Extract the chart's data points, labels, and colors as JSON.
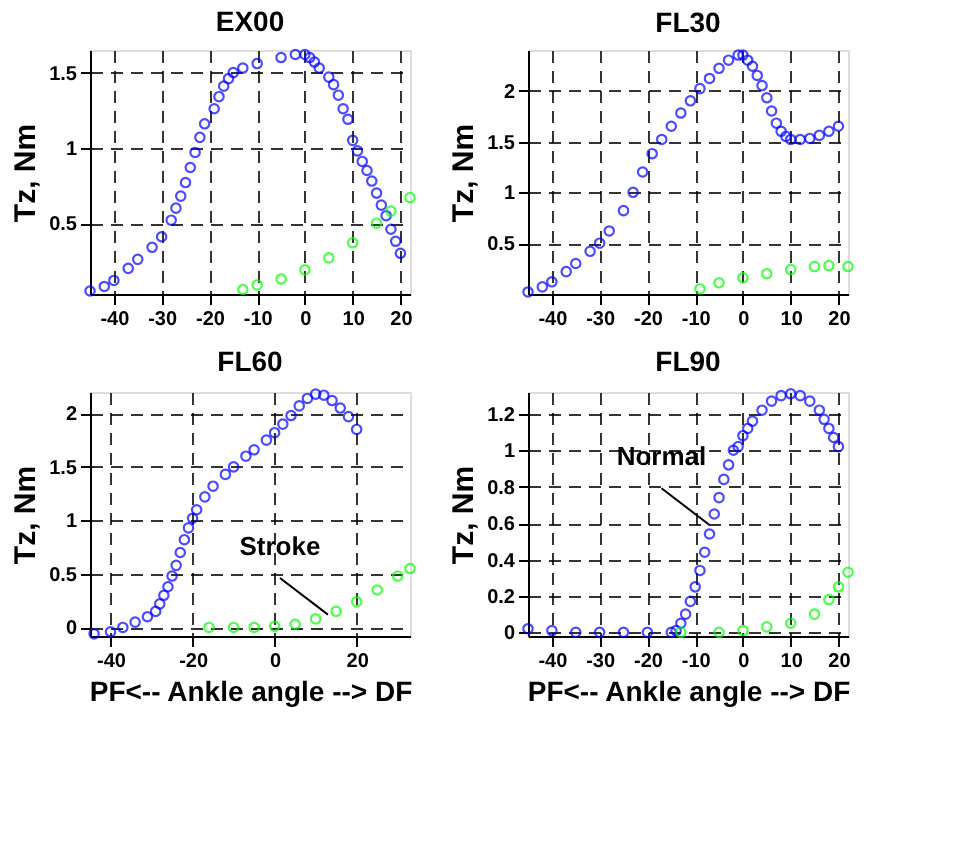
{
  "chart_data": [
    {
      "type": "scatter",
      "title": "EX00",
      "ylabel": "Tz, Nm",
      "xlim": [
        -45,
        22
      ],
      "ylim": [
        0.03,
        1.65
      ],
      "xticks": [
        -40,
        -30,
        -20,
        -10,
        0,
        10,
        20
      ],
      "yticks": [
        0.5,
        1,
        1.5
      ],
      "grid": true,
      "marker": "circle",
      "series": [
        {
          "color": "#0000ff",
          "x": [
            -45,
            -42,
            -40,
            -37,
            -35,
            -32,
            -30,
            -28,
            -27,
            -26,
            -25,
            -24,
            -23,
            -22,
            -21,
            -19,
            -18,
            -17,
            -16,
            -15,
            -13,
            -10,
            -5,
            -2,
            0,
            1,
            2,
            3,
            5,
            6,
            7,
            8,
            9,
            10,
            11,
            12,
            13,
            14,
            15,
            16,
            17,
            18,
            19,
            20
          ],
          "values": [
            0.05,
            0.08,
            0.12,
            0.2,
            0.26,
            0.34,
            0.41,
            0.52,
            0.6,
            0.68,
            0.77,
            0.87,
            0.97,
            1.07,
            1.16,
            1.26,
            1.34,
            1.41,
            1.46,
            1.5,
            1.53,
            1.56,
            1.6,
            1.62,
            1.62,
            1.6,
            1.57,
            1.53,
            1.47,
            1.42,
            1.35,
            1.26,
            1.19,
            1.05,
            0.98,
            0.91,
            0.85,
            0.78,
            0.7,
            0.62,
            0.55,
            0.46,
            0.38,
            0.3
          ]
        },
        {
          "color": "#00ff00",
          "x": [
            -13,
            -10,
            -5,
            0,
            5,
            10,
            15,
            18,
            22
          ],
          "values": [
            0.06,
            0.09,
            0.13,
            0.19,
            0.27,
            0.37,
            0.5,
            0.58,
            0.67
          ]
        }
      ]
    },
    {
      "type": "scatter",
      "title": "FL30",
      "ylabel": "Tz, Nm",
      "xlim": [
        -45,
        22
      ],
      "ylim": [
        0,
        2.4
      ],
      "xticks": [
        -40,
        -30,
        -20,
        -10,
        0,
        10,
        20
      ],
      "yticks": [
        0.5,
        1,
        1.5,
        2
      ],
      "grid": true,
      "marker": "circle",
      "series": [
        {
          "color": "#0000ff",
          "x": [
            -45,
            -42,
            -40,
            -37,
            -35,
            -32,
            -30,
            -28,
            -25,
            -23,
            -21,
            -19,
            -17,
            -15,
            -13,
            -11,
            -9,
            -7,
            -5,
            -3,
            -1,
            0,
            1,
            2,
            3,
            4,
            5,
            6,
            7,
            8,
            9,
            10,
            12,
            14,
            16,
            18,
            20
          ],
          "values": [
            0.02,
            0.07,
            0.12,
            0.22,
            0.3,
            0.42,
            0.5,
            0.62,
            0.82,
            1.0,
            1.2,
            1.38,
            1.52,
            1.65,
            1.78,
            1.9,
            2.02,
            2.12,
            2.22,
            2.3,
            2.35,
            2.35,
            2.3,
            2.24,
            2.15,
            2.05,
            1.93,
            1.8,
            1.68,
            1.6,
            1.55,
            1.52,
            1.52,
            1.53,
            1.56,
            1.6,
            1.65
          ]
        },
        {
          "color": "#00ff00",
          "x": [
            -9,
            -5,
            0,
            5,
            10,
            15,
            18,
            22
          ],
          "values": [
            0.05,
            0.11,
            0.16,
            0.2,
            0.24,
            0.27,
            0.28,
            0.27
          ]
        }
      ]
    },
    {
      "type": "scatter",
      "title": "FL60",
      "xlabel": "PF<-- Ankle angle --> DF",
      "ylabel": "Tz, Nm",
      "xlim": [
        -45,
        33
      ],
      "ylim": [
        -0.08,
        2.2
      ],
      "xticks": [
        -40,
        -20,
        0,
        20
      ],
      "yticks": [
        0,
        0.5,
        1,
        1.5,
        2
      ],
      "grid": true,
      "marker": "circle",
      "annotations": [
        {
          "text": "Stroke",
          "x": 13,
          "y": 0.12
        }
      ],
      "series": [
        {
          "color": "#0000ff",
          "x": [
            -44,
            -40,
            -37,
            -34,
            -31,
            -29,
            -28,
            -27,
            -26,
            -25,
            -24,
            -23,
            -22,
            -21,
            -20,
            -19,
            -17,
            -15,
            -12,
            -10,
            -7,
            -5,
            -2,
            0,
            2,
            4,
            6,
            8,
            10,
            12,
            14,
            16,
            18,
            20
          ],
          "values": [
            -0.06,
            -0.04,
            0.0,
            0.05,
            0.1,
            0.15,
            0.22,
            0.3,
            0.38,
            0.48,
            0.58,
            0.7,
            0.82,
            0.93,
            1.02,
            1.1,
            1.22,
            1.32,
            1.43,
            1.5,
            1.6,
            1.66,
            1.75,
            1.82,
            1.9,
            1.98,
            2.07,
            2.14,
            2.18,
            2.17,
            2.12,
            2.05,
            1.97,
            1.85
          ]
        },
        {
          "color": "#00ff00",
          "x": [
            -16,
            -10,
            -5,
            0,
            5,
            10,
            15,
            20,
            25,
            30,
            33
          ],
          "values": [
            0.0,
            0.0,
            0.0,
            0.01,
            0.03,
            0.08,
            0.15,
            0.24,
            0.35,
            0.48,
            0.55
          ]
        }
      ]
    },
    {
      "type": "scatter",
      "title": "FL90",
      "xlabel": "PF<-- Ankle angle --> DF",
      "ylabel": "Tz, Nm",
      "xlim": [
        -45,
        22
      ],
      "ylim": [
        -0.02,
        1.32
      ],
      "xticks": [
        -40,
        -30,
        -20,
        -10,
        0,
        10,
        20
      ],
      "yticks": [
        0,
        0.2,
        0.4,
        0.6,
        0.8,
        1,
        1.2
      ],
      "grid": true,
      "marker": "circle",
      "annotations": [
        {
          "text": "Normal",
          "x": -7,
          "y": 0.59
        }
      ],
      "series": [
        {
          "color": "#0000ff",
          "x": [
            -45,
            -40,
            -35,
            -30,
            -25,
            -20,
            -15,
            -14,
            -13,
            -12,
            -11,
            -10,
            -9,
            -8,
            -7,
            -6,
            -5,
            -4,
            -3,
            -2,
            -1,
            0,
            1,
            2,
            4,
            6,
            8,
            10,
            12,
            14,
            16,
            17,
            18,
            19,
            20
          ],
          "values": [
            0.02,
            0.01,
            0.0,
            0.0,
            0.0,
            0.0,
            0.0,
            0.01,
            0.05,
            0.1,
            0.17,
            0.25,
            0.34,
            0.44,
            0.54,
            0.65,
            0.74,
            0.84,
            0.92,
            1.0,
            1.02,
            1.08,
            1.12,
            1.16,
            1.22,
            1.27,
            1.3,
            1.31,
            1.3,
            1.27,
            1.22,
            1.17,
            1.12,
            1.07,
            1.02
          ]
        },
        {
          "color": "#00ff00",
          "x": [
            -13,
            -5,
            0,
            5,
            10,
            15,
            18,
            20,
            22
          ],
          "values": [
            0.0,
            0.0,
            0.01,
            0.03,
            0.05,
            0.1,
            0.18,
            0.25,
            0.33
          ]
        }
      ]
    }
  ]
}
